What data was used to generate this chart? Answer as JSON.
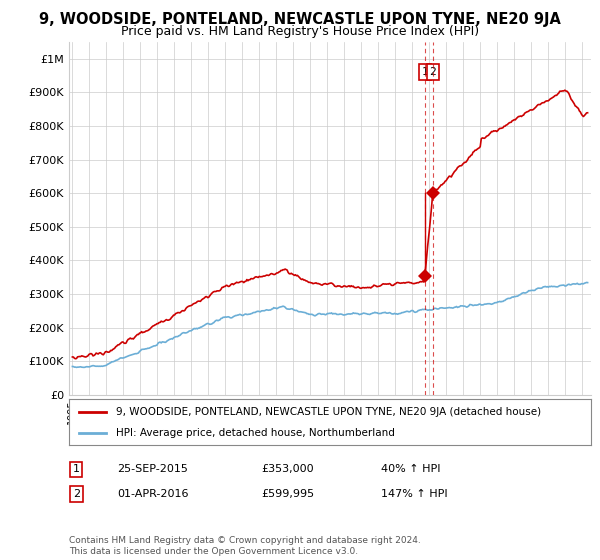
{
  "title": "9, WOODSIDE, PONTELAND, NEWCASTLE UPON TYNE, NE20 9JA",
  "subtitle": "Price paid vs. HM Land Registry's House Price Index (HPI)",
  "ylabel_ticks": [
    "£0",
    "£100K",
    "£200K",
    "£300K",
    "£400K",
    "£500K",
    "£600K",
    "£700K",
    "£800K",
    "£900K",
    "£1M"
  ],
  "ytick_values": [
    0,
    100000,
    200000,
    300000,
    400000,
    500000,
    600000,
    700000,
    800000,
    900000,
    1000000
  ],
  "ylim": [
    0,
    1050000
  ],
  "xlim_start": 1994.8,
  "xlim_end": 2025.5,
  "hpi_line_color": "#6baed6",
  "property_line_color": "#CC0000",
  "dashed_line_color": "#CC0000",
  "grid_color": "#CCCCCC",
  "background_color": "#FFFFFF",
  "sale1_date": 2015.73,
  "sale1_price": 353000,
  "sale1_label": "1",
  "sale2_date": 2016.2,
  "sale2_price": 599995,
  "sale2_label": "2",
  "legend_property": "9, WOODSIDE, PONTELAND, NEWCASTLE UPON TYNE, NE20 9JA (detached house)",
  "legend_hpi": "HPI: Average price, detached house, Northumberland",
  "note1_num": "1",
  "note1_date": "25-SEP-2015",
  "note1_price": "£353,000",
  "note1_pct": "40% ↑ HPI",
  "note2_num": "2",
  "note2_date": "01-APR-2016",
  "note2_price": "£599,995",
  "note2_pct": "147% ↑ HPI",
  "footer": "Contains HM Land Registry data © Crown copyright and database right 2024.\nThis data is licensed under the Open Government Licence v3.0."
}
